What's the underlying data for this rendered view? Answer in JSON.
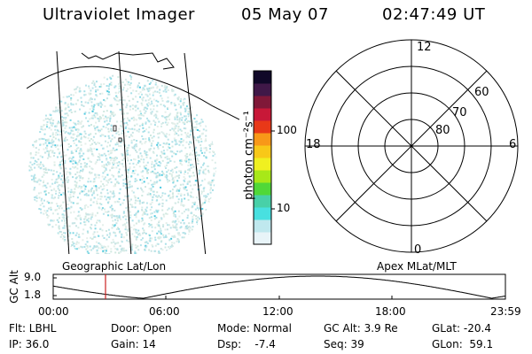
{
  "header": {
    "instrument": "Ultraviolet Imager",
    "date": "05 May 07",
    "time": "02:47:49 UT"
  },
  "colorbar": {
    "unit_label": "photon cm⁻²s⁻¹",
    "tick_labels": [
      "100",
      "10"
    ],
    "colors": [
      "#e8f4f8",
      "#bfe8ee",
      "#48e0e0",
      "#48d0a8",
      "#50d838",
      "#a8e818",
      "#f0f020",
      "#f8c818",
      "#f89818",
      "#e83818",
      "#c81838",
      "#801838",
      "#401848",
      "#100828"
    ]
  },
  "polar_grid": {
    "labels": {
      "top": "12",
      "bottom": "0",
      "left": "18",
      "right": "6",
      "lat_60": "60",
      "lat_70": "70",
      "lat_80": "80"
    }
  },
  "map_labels": {
    "geographic": "Geographic Lat/Lon",
    "apex": "Apex MLat/MLT"
  },
  "altitude_plot": {
    "ylabel": "GC Alt",
    "yticks": [
      "9.0",
      "1.8"
    ],
    "xticks": [
      "00:00",
      "06:00",
      "12:00",
      "18:00",
      "23:59"
    ],
    "marker_color": "#cc2222"
  },
  "footer": {
    "row1": {
      "filter": "Flt: LBHL",
      "door": "Door: Open",
      "mode": "Mode: Normal",
      "gc_alt": "GC Alt: 3.9 Re",
      "glat": "GLat: -20.4"
    },
    "row2": {
      "ip": "IP: 36.0",
      "gain": "Gain: 14",
      "dsp": "Dsp:    -7.4",
      "seq": "Seq: 39",
      "glon": "GLon:  59.1"
    }
  }
}
